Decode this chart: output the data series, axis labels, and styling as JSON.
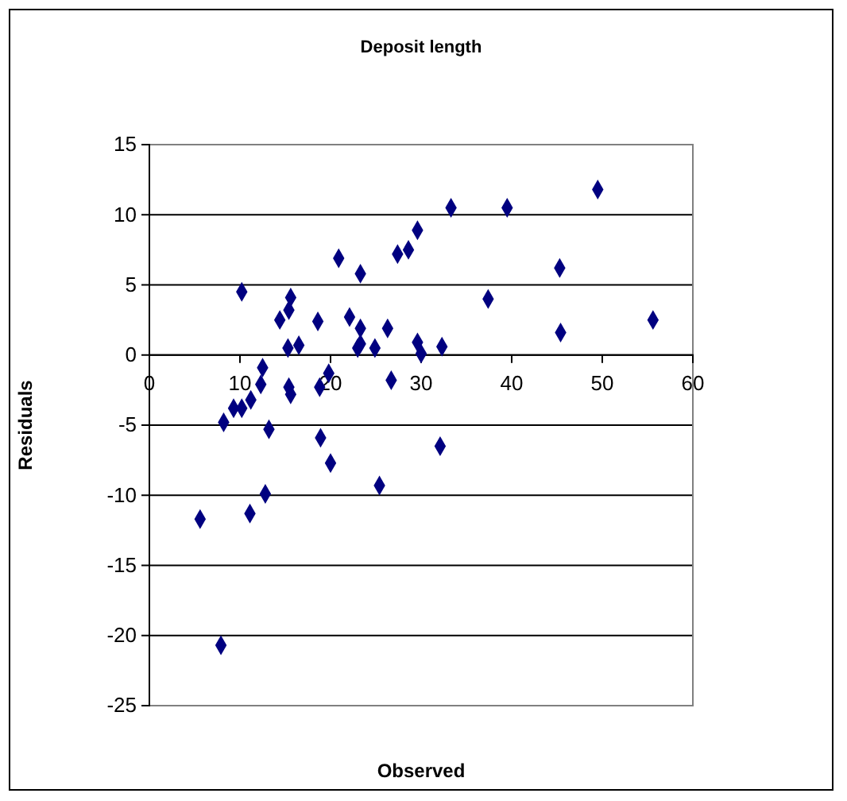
{
  "chart_data": {
    "type": "scatter",
    "title": "Deposit length",
    "xlabel": "Observed",
    "ylabel": "Residuals",
    "xlim": [
      0,
      60
    ],
    "xticks": [
      0,
      10,
      20,
      30,
      40,
      50,
      60
    ],
    "ylim": [
      -25,
      15
    ],
    "yticks": [
      -25,
      -20,
      -15,
      -10,
      -5,
      0,
      5,
      10,
      15
    ],
    "grid": "y",
    "marker": "diamond",
    "series": [
      {
        "color": "#000080",
        "x": [
          10.2,
          8.2,
          9.3,
          10.2,
          11.2,
          12.3,
          12.5,
          13.2,
          14.4,
          15.4,
          15.6,
          15.3,
          16.5,
          15.4,
          15.6,
          18.6,
          18.8,
          19.8,
          20.9,
          22.1,
          23.3,
          23.3,
          23.0,
          23.3,
          24.9,
          26.3,
          26.7,
          27.4,
          28.6,
          29.6,
          29.6,
          30.0,
          32.3,
          18.9,
          20.0,
          32.1,
          25.4,
          12.8,
          11.1,
          5.6,
          7.9,
          33.3,
          39.5,
          49.5,
          45.3,
          37.4,
          45.4,
          55.6
        ],
        "values": [
          4.5,
          -4.8,
          -3.8,
          -3.8,
          -3.2,
          -2.1,
          -0.9,
          -5.3,
          2.5,
          3.2,
          4.1,
          0.5,
          0.7,
          -2.3,
          -2.8,
          2.4,
          -2.3,
          -1.3,
          6.9,
          2.7,
          5.8,
          1.9,
          0.5,
          0.8,
          0.5,
          1.9,
          -1.8,
          7.2,
          7.5,
          8.9,
          0.9,
          0.1,
          0.6,
          -5.9,
          -7.7,
          -6.5,
          -9.3,
          -9.9,
          -11.3,
          -11.7,
          -20.7,
          10.5,
          10.5,
          11.8,
          6.2,
          4.0,
          1.6,
          2.5
        ]
      }
    ]
  }
}
